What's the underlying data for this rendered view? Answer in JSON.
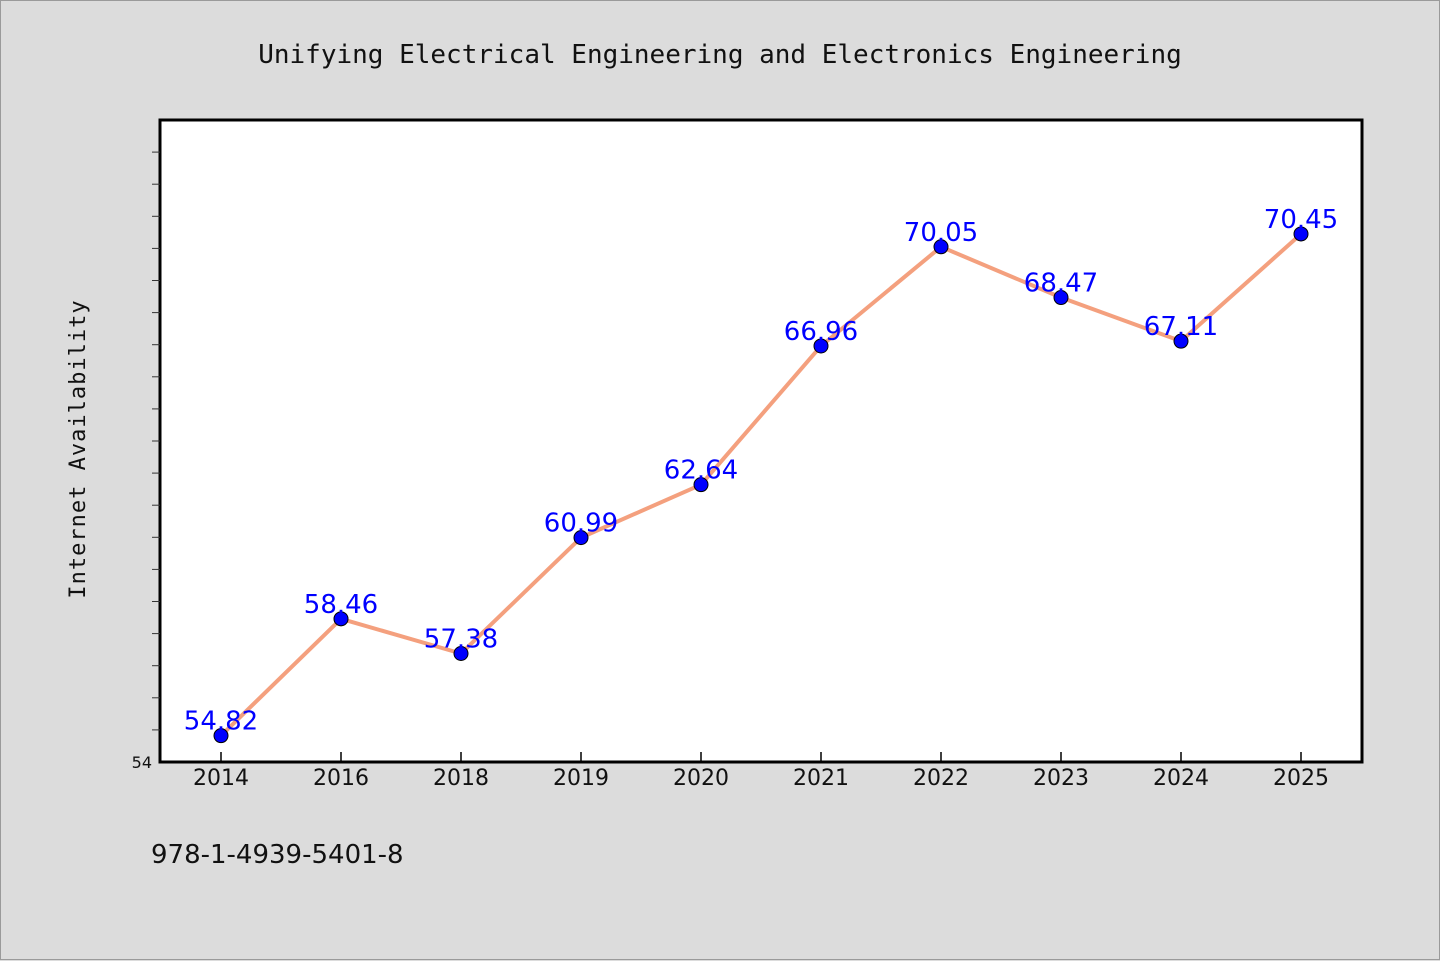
{
  "chart_data": {
    "type": "line",
    "title": "Unifying Electrical Engineering and Electronics Engineering",
    "ylabel": "Internet Availability",
    "xlabel": "",
    "categories": [
      "2014",
      "2016",
      "2018",
      "2019",
      "2020",
      "2021",
      "2022",
      "2023",
      "2024",
      "2025"
    ],
    "series": [
      {
        "values": [
          54.82,
          58.46,
          57.38,
          60.99,
          62.64,
          66.96,
          70.05,
          68.47,
          67.11,
          70.45
        ]
      }
    ],
    "ylim": [
      54,
      74
    ],
    "yticks_labeled": [
      "54"
    ],
    "grid": false,
    "legend": "none",
    "colors": {
      "line": "#f4a07e",
      "marker": "#0000ff",
      "data_label": "#0000ff",
      "plot_bg": "#ffffff",
      "page_bg": "#dcdcdc"
    }
  },
  "footer": {
    "isbn": "978-1-4939-5401-8"
  }
}
